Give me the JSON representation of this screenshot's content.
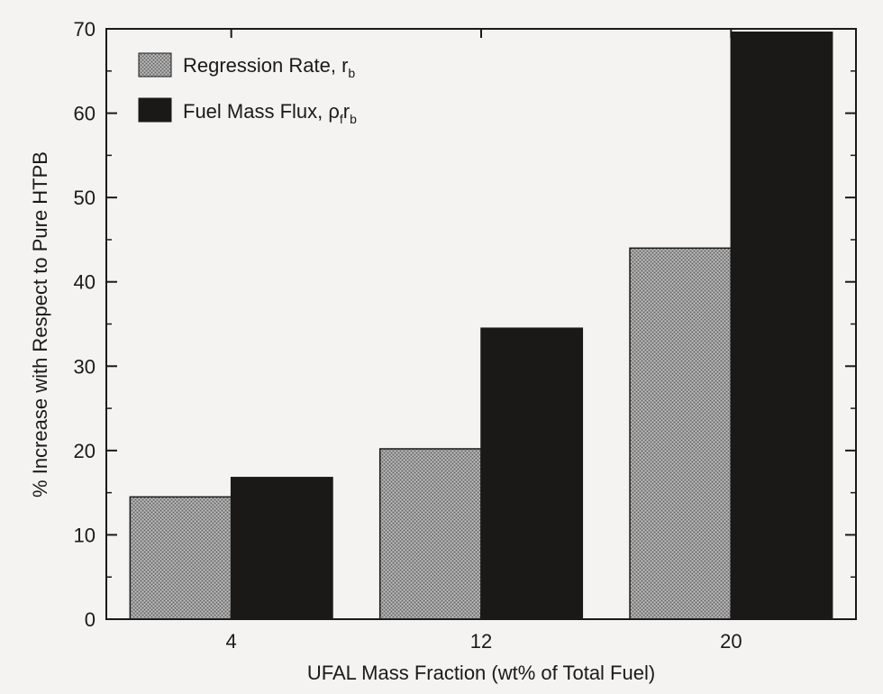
{
  "chart_data": {
    "type": "bar",
    "title": "",
    "xlabel": "UFAL Mass Fraction (wt% of Total Fuel)",
    "ylabel": "% Increase with Respect to Pure HTPB",
    "categories": [
      "4",
      "12",
      "20"
    ],
    "ylim": [
      0,
      70
    ],
    "yticks": [
      0,
      10,
      20,
      30,
      40,
      50,
      60,
      70
    ],
    "grid": false,
    "legend_position": "top-left",
    "series": [
      {
        "name": "Regression Rate, r",
        "name_subscript": "b",
        "values": [
          14.5,
          20.2,
          44.0
        ],
        "color": "#8c8c8c",
        "pattern": "stippled"
      },
      {
        "name": "Fuel Mass Flux, ρ",
        "name_subscript": "f",
        "name_tail": "r",
        "name_tail_subscript": "b",
        "values": [
          16.8,
          34.5,
          69.6
        ],
        "color": "#1b1818",
        "pattern": "solid"
      }
    ]
  }
}
